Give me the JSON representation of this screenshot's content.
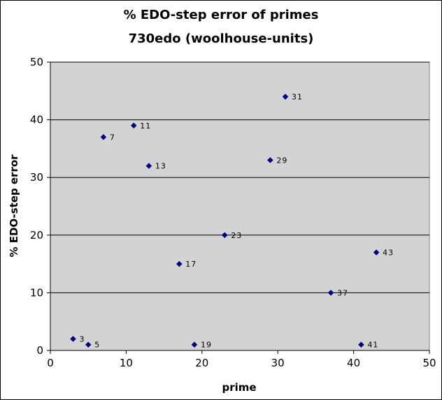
{
  "chart_data": {
    "type": "scatter",
    "title": "% EDO-step error of primes",
    "subtitle": "730edo (woolhouse-units)",
    "xlabel": "prime",
    "ylabel": "% EDO-step error",
    "xlim": [
      0,
      50
    ],
    "ylim": [
      0,
      50
    ],
    "x_ticks": [
      "0",
      "10",
      "20",
      "30",
      "40",
      "50"
    ],
    "y_ticks": [
      "0",
      "10",
      "20",
      "30",
      "40",
      "50"
    ],
    "grid": "horizontal",
    "legend": "none",
    "plot_background": "#d3d3d3",
    "marker_color": "#000080",
    "points": [
      {
        "x": 3,
        "y": 2,
        "label": "3"
      },
      {
        "x": 5,
        "y": 1,
        "label": "5"
      },
      {
        "x": 7,
        "y": 37,
        "label": "7"
      },
      {
        "x": 11,
        "y": 39,
        "label": "11"
      },
      {
        "x": 13,
        "y": 32,
        "label": "13"
      },
      {
        "x": 17,
        "y": 15,
        "label": "17"
      },
      {
        "x": 19,
        "y": 1,
        "label": "19"
      },
      {
        "x": 23,
        "y": 20,
        "label": "23"
      },
      {
        "x": 29,
        "y": 33,
        "label": "29"
      },
      {
        "x": 31,
        "y": 44,
        "label": "31"
      },
      {
        "x": 37,
        "y": 10,
        "label": "37"
      },
      {
        "x": 41,
        "y": 1,
        "label": "41"
      },
      {
        "x": 43,
        "y": 17,
        "label": "43"
      }
    ]
  }
}
